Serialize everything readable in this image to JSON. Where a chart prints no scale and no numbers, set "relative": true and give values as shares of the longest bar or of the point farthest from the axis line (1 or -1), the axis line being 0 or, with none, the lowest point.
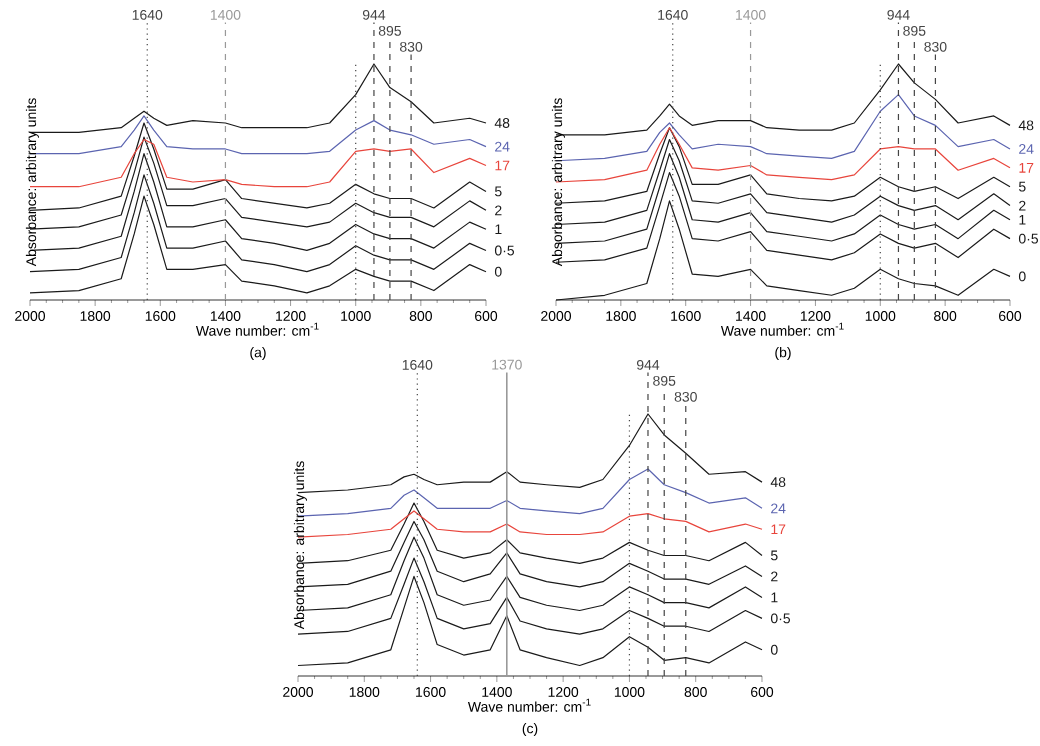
{
  "chart_data": [
    {
      "type": "line",
      "title": "(a)",
      "xlabel": "Wave number: cm$^{-1}$",
      "ylabel": "Absorbance: arbitrary units",
      "relative": true,
      "tick_labels": "x",
      "xlim": [
        2000,
        600
      ],
      "xticks": [
        2000,
        1800,
        1600,
        1400,
        1200,
        1000,
        800,
        600
      ],
      "x": [
        2000,
        1850,
        1720,
        1680,
        1650,
        1620,
        1580,
        1500,
        1400,
        1350,
        1250,
        1150,
        1080,
        1000,
        944,
        895,
        830,
        760,
        650,
        600
      ],
      "series": [
        {
          "name": "0",
          "color": "#1a1a1a",
          "values": [
            0.03,
            0.04,
            0.09,
            0.28,
            0.44,
            0.32,
            0.13,
            0.13,
            0.15,
            0.08,
            0.06,
            0.03,
            0.06,
            0.13,
            0.1,
            0.08,
            0.08,
            0.04,
            0.15,
            0.12
          ]
        },
        {
          "name": "0·5",
          "color": "#1a1a1a",
          "values": [
            0.12,
            0.13,
            0.18,
            0.37,
            0.53,
            0.41,
            0.22,
            0.22,
            0.25,
            0.17,
            0.15,
            0.12,
            0.15,
            0.23,
            0.19,
            0.17,
            0.17,
            0.13,
            0.24,
            0.21
          ]
        },
        {
          "name": "1",
          "color": "#1a1a1a",
          "values": [
            0.21,
            0.22,
            0.27,
            0.46,
            0.62,
            0.5,
            0.31,
            0.31,
            0.34,
            0.26,
            0.24,
            0.21,
            0.24,
            0.32,
            0.28,
            0.26,
            0.26,
            0.22,
            0.33,
            0.3
          ]
        },
        {
          "name": "2",
          "color": "#1a1a1a",
          "values": [
            0.3,
            0.31,
            0.36,
            0.54,
            0.69,
            0.58,
            0.4,
            0.4,
            0.43,
            0.35,
            0.33,
            0.31,
            0.33,
            0.41,
            0.37,
            0.35,
            0.35,
            0.31,
            0.42,
            0.38
          ]
        },
        {
          "name": "5",
          "color": "#1a1a1a",
          "values": [
            0.38,
            0.39,
            0.44,
            0.61,
            0.75,
            0.64,
            0.47,
            0.47,
            0.51,
            0.43,
            0.41,
            0.39,
            0.41,
            0.49,
            0.45,
            0.43,
            0.43,
            0.39,
            0.5,
            0.46
          ]
        },
        {
          "name": "17",
          "color": "#e8453c",
          "values": [
            0.48,
            0.48,
            0.52,
            0.62,
            0.68,
            0.66,
            0.52,
            0.5,
            0.51,
            0.49,
            0.48,
            0.48,
            0.5,
            0.63,
            0.64,
            0.63,
            0.64,
            0.54,
            0.6,
            0.57
          ]
        },
        {
          "name": "24",
          "color": "#5b64b0",
          "values": [
            0.62,
            0.62,
            0.65,
            0.72,
            0.78,
            0.72,
            0.65,
            0.64,
            0.64,
            0.62,
            0.62,
            0.62,
            0.63,
            0.72,
            0.76,
            0.72,
            0.7,
            0.66,
            0.68,
            0.65
          ]
        },
        {
          "name": "48",
          "color": "#1a1a1a",
          "values": [
            0.71,
            0.71,
            0.73,
            0.77,
            0.8,
            0.77,
            0.74,
            0.76,
            0.75,
            0.73,
            0.73,
            0.73,
            0.75,
            0.87,
            1.0,
            0.9,
            0.84,
            0.75,
            0.77,
            0.75
          ]
        }
      ],
      "ref_lines": [
        {
          "axis": "x",
          "value": 1640,
          "label": "1640",
          "color": "#444444",
          "line_style": "dotted"
        },
        {
          "axis": "x",
          "value": 1400,
          "label": "1400",
          "color": "#999999",
          "line_style": "dashed"
        },
        {
          "axis": "x",
          "value": 1000,
          "label": null,
          "color": "#444444",
          "line_style": "dotted"
        },
        {
          "axis": "x",
          "value": 944,
          "label": "944",
          "color": "#444444",
          "line_style": "dashed"
        },
        {
          "axis": "x",
          "value": 895,
          "label": "895",
          "color": "#444444",
          "line_style": "dashed"
        },
        {
          "axis": "x",
          "value": 830,
          "label": "830",
          "color": "#444444",
          "line_style": "dashed"
        }
      ]
    },
    {
      "type": "line",
      "title": "(b)",
      "xlabel": "Wave number: cm$^{-1}$",
      "ylabel": "Absorbance: arbitrary units",
      "relative": true,
      "tick_labels": "x",
      "xlim": [
        2000,
        600
      ],
      "xticks": [
        2000,
        1800,
        1600,
        1400,
        1200,
        1000,
        800,
        600
      ],
      "x": [
        2000,
        1850,
        1720,
        1680,
        1650,
        1620,
        1580,
        1500,
        1400,
        1350,
        1250,
        1150,
        1080,
        1000,
        944,
        895,
        830,
        760,
        650,
        600
      ],
      "series": [
        {
          "name": "0",
          "color": "#1a1a1a",
          "values": [
            0.0,
            0.02,
            0.07,
            0.26,
            0.42,
            0.3,
            0.11,
            0.1,
            0.13,
            0.06,
            0.04,
            0.02,
            0.05,
            0.13,
            0.09,
            0.07,
            0.06,
            0.02,
            0.13,
            0.1
          ]
        },
        {
          "name": "0·5",
          "color": "#1a1a1a",
          "values": [
            0.16,
            0.17,
            0.22,
            0.4,
            0.54,
            0.44,
            0.26,
            0.25,
            0.29,
            0.21,
            0.19,
            0.17,
            0.2,
            0.28,
            0.24,
            0.22,
            0.24,
            0.18,
            0.3,
            0.26
          ]
        },
        {
          "name": "1",
          "color": "#1a1a1a",
          "values": [
            0.24,
            0.25,
            0.3,
            0.48,
            0.62,
            0.52,
            0.34,
            0.33,
            0.37,
            0.29,
            0.27,
            0.25,
            0.28,
            0.36,
            0.32,
            0.3,
            0.32,
            0.26,
            0.38,
            0.34
          ]
        },
        {
          "name": "2",
          "color": "#1a1a1a",
          "values": [
            0.32,
            0.33,
            0.38,
            0.55,
            0.68,
            0.59,
            0.42,
            0.41,
            0.45,
            0.37,
            0.35,
            0.33,
            0.36,
            0.44,
            0.4,
            0.38,
            0.4,
            0.34,
            0.45,
            0.4
          ]
        },
        {
          "name": "5",
          "color": "#1a1a1a",
          "values": [
            0.41,
            0.42,
            0.46,
            0.62,
            0.73,
            0.65,
            0.49,
            0.49,
            0.53,
            0.45,
            0.43,
            0.42,
            0.44,
            0.52,
            0.48,
            0.46,
            0.48,
            0.43,
            0.52,
            0.48
          ]
        },
        {
          "name": "17",
          "color": "#e8453c",
          "values": [
            0.5,
            0.51,
            0.55,
            0.66,
            0.73,
            0.66,
            0.56,
            0.55,
            0.57,
            0.53,
            0.52,
            0.51,
            0.53,
            0.64,
            0.65,
            0.64,
            0.64,
            0.55,
            0.6,
            0.56
          ]
        },
        {
          "name": "24",
          "color": "#5b64b0",
          "values": [
            0.59,
            0.6,
            0.63,
            0.71,
            0.75,
            0.7,
            0.64,
            0.66,
            0.65,
            0.62,
            0.61,
            0.6,
            0.63,
            0.8,
            0.87,
            0.78,
            0.74,
            0.65,
            0.68,
            0.64
          ]
        },
        {
          "name": "48",
          "color": "#1a1a1a",
          "values": [
            0.7,
            0.7,
            0.72,
            0.78,
            0.83,
            0.78,
            0.74,
            0.76,
            0.76,
            0.73,
            0.72,
            0.72,
            0.75,
            0.89,
            1.0,
            0.92,
            0.85,
            0.75,
            0.78,
            0.74
          ]
        }
      ],
      "ref_lines": [
        {
          "axis": "x",
          "value": 1640,
          "label": "1640",
          "color": "#444444",
          "line_style": "dotted"
        },
        {
          "axis": "x",
          "value": 1400,
          "label": "1400",
          "color": "#999999",
          "line_style": "dashed"
        },
        {
          "axis": "x",
          "value": 1000,
          "label": null,
          "color": "#444444",
          "line_style": "dotted"
        },
        {
          "axis": "x",
          "value": 944,
          "label": "944",
          "color": "#444444",
          "line_style": "dashed"
        },
        {
          "axis": "x",
          "value": 895,
          "label": "895",
          "color": "#444444",
          "line_style": "dashed"
        },
        {
          "axis": "x",
          "value": 830,
          "label": "830",
          "color": "#444444",
          "line_style": "dashed"
        }
      ]
    },
    {
      "type": "line",
      "title": "(c)",
      "xlabel": "Wave number: cm$^{-1}$",
      "ylabel": "Absorbance: arbitrary units",
      "relative": true,
      "tick_labels": "x",
      "xlim": [
        2000,
        600
      ],
      "xticks": [
        2000,
        1800,
        1600,
        1400,
        1200,
        1000,
        800,
        600
      ],
      "x": [
        2000,
        1850,
        1720,
        1680,
        1650,
        1620,
        1580,
        1500,
        1420,
        1370,
        1330,
        1250,
        1150,
        1080,
        1000,
        944,
        895,
        830,
        760,
        650,
        600
      ],
      "series": [
        {
          "name": "0",
          "color": "#1a1a1a",
          "values": [
            0.04,
            0.05,
            0.1,
            0.26,
            0.38,
            0.28,
            0.12,
            0.08,
            0.1,
            0.23,
            0.1,
            0.07,
            0.04,
            0.07,
            0.15,
            0.11,
            0.06,
            0.07,
            0.05,
            0.13,
            0.1
          ]
        },
        {
          "name": "0·5",
          "color": "#1a1a1a",
          "values": [
            0.16,
            0.17,
            0.22,
            0.35,
            0.45,
            0.36,
            0.22,
            0.18,
            0.2,
            0.3,
            0.21,
            0.18,
            0.16,
            0.18,
            0.25,
            0.22,
            0.19,
            0.19,
            0.17,
            0.25,
            0.22
          ]
        },
        {
          "name": "1",
          "color": "#1a1a1a",
          "values": [
            0.25,
            0.26,
            0.31,
            0.44,
            0.53,
            0.45,
            0.31,
            0.27,
            0.29,
            0.38,
            0.3,
            0.27,
            0.25,
            0.27,
            0.34,
            0.31,
            0.28,
            0.28,
            0.26,
            0.34,
            0.3
          ]
        },
        {
          "name": "2",
          "color": "#1a1a1a",
          "values": [
            0.34,
            0.35,
            0.4,
            0.51,
            0.59,
            0.52,
            0.4,
            0.36,
            0.39,
            0.47,
            0.39,
            0.36,
            0.34,
            0.36,
            0.43,
            0.4,
            0.37,
            0.37,
            0.35,
            0.42,
            0.38
          ]
        },
        {
          "name": "5",
          "color": "#1a1a1a",
          "values": [
            0.43,
            0.44,
            0.48,
            0.58,
            0.66,
            0.59,
            0.48,
            0.45,
            0.47,
            0.52,
            0.47,
            0.45,
            0.43,
            0.45,
            0.51,
            0.48,
            0.46,
            0.46,
            0.44,
            0.51,
            0.46
          ]
        },
        {
          "name": "17",
          "color": "#e8453c",
          "values": [
            0.53,
            0.54,
            0.56,
            0.6,
            0.63,
            0.6,
            0.56,
            0.55,
            0.55,
            0.58,
            0.55,
            0.54,
            0.54,
            0.55,
            0.61,
            0.62,
            0.6,
            0.59,
            0.55,
            0.58,
            0.56
          ]
        },
        {
          "name": "24",
          "color": "#5b64b0",
          "values": [
            0.61,
            0.62,
            0.64,
            0.69,
            0.71,
            0.68,
            0.64,
            0.64,
            0.64,
            0.67,
            0.64,
            0.63,
            0.62,
            0.64,
            0.75,
            0.79,
            0.73,
            0.7,
            0.66,
            0.68,
            0.64
          ]
        },
        {
          "name": "48",
          "color": "#1a1a1a",
          "values": [
            0.7,
            0.71,
            0.73,
            0.76,
            0.77,
            0.75,
            0.73,
            0.74,
            0.74,
            0.78,
            0.74,
            0.73,
            0.72,
            0.75,
            0.88,
            1.0,
            0.92,
            0.85,
            0.77,
            0.78,
            0.74
          ]
        }
      ],
      "ref_lines": [
        {
          "axis": "x",
          "value": 1640,
          "label": "1640",
          "color": "#444444",
          "line_style": "dotted"
        },
        {
          "axis": "x",
          "value": 1370,
          "label": "1370",
          "color": "#999999",
          "line_style": "solid"
        },
        {
          "axis": "x",
          "value": 1000,
          "label": null,
          "color": "#444444",
          "line_style": "dotted"
        },
        {
          "axis": "x",
          "value": 944,
          "label": "944",
          "color": "#444444",
          "line_style": "dashed"
        },
        {
          "axis": "x",
          "value": 895,
          "label": "895",
          "color": "#444444",
          "line_style": "dashed"
        },
        {
          "axis": "x",
          "value": 830,
          "label": "830",
          "color": "#444444",
          "line_style": "dashed"
        }
      ]
    }
  ]
}
